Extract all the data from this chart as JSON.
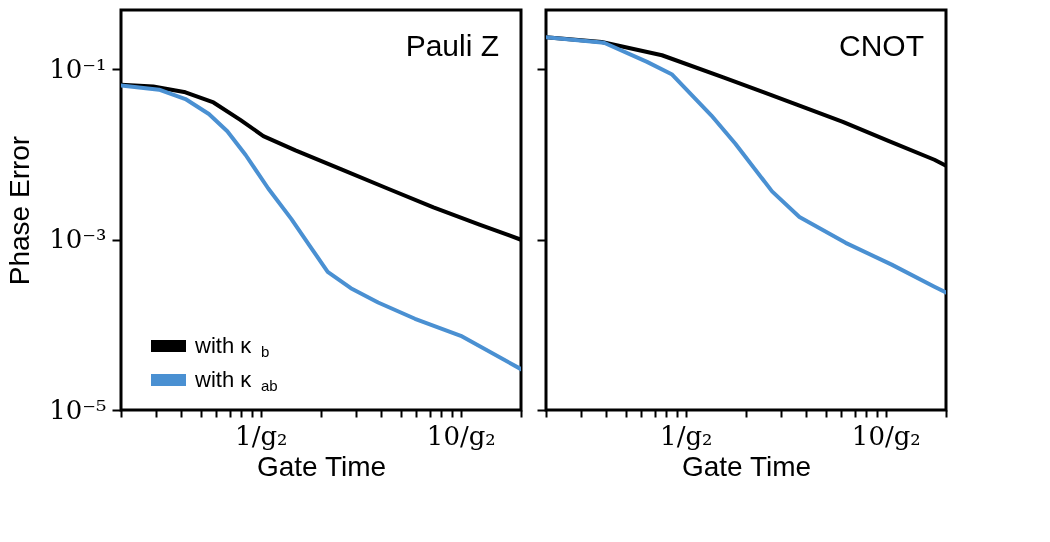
{
  "chart_data": [
    {
      "type": "line",
      "annotations": [
        "Pauli Z"
      ],
      "xlabel": "Gate Time",
      "ylabel": "Phase Error",
      "log": "xy",
      "legend": "bottom left",
      "grid": false,
      "xlim": [
        0.2,
        20
      ],
      "ylim": [
        1e-05,
        0.5
      ],
      "xticks": [
        {
          "value": 0.2,
          "label": null
        },
        {
          "value": 0.3,
          "label": null
        },
        {
          "value": 0.4,
          "label": null
        },
        {
          "value": 0.5,
          "label": null
        },
        {
          "value": 0.6,
          "label": null
        },
        {
          "value": 0.7,
          "label": null
        },
        {
          "value": 0.8,
          "label": null
        },
        {
          "value": 0.9,
          "label": null
        },
        {
          "value": 1,
          "label": "1/g₂"
        },
        {
          "value": 2,
          "label": null
        },
        {
          "value": 3,
          "label": null
        },
        {
          "value": 4,
          "label": null
        },
        {
          "value": 5,
          "label": null
        },
        {
          "value": 6,
          "label": null
        },
        {
          "value": 7,
          "label": null
        },
        {
          "value": 8,
          "label": null
        },
        {
          "value": 9,
          "label": null
        },
        {
          "value": 10,
          "label": "10/g₂"
        },
        {
          "value": 20,
          "label": null
        }
      ],
      "yticks": [
        {
          "value": 0.1,
          "label": "10⁻¹"
        },
        {
          "value": 0.001,
          "label": "10⁻³"
        },
        {
          "value": 1e-05,
          "label": "10⁻⁵"
        }
      ],
      "series": [
        {
          "name": "with κ$_{b}$",
          "color": "#000000",
          "x": [
            0.2,
            0.29,
            0.42,
            0.58,
            0.79,
            1.03,
            1.49,
            2.53,
            4.3,
            7.3,
            12.4,
            20
          ],
          "values": [
            0.066,
            0.063,
            0.054,
            0.041,
            0.0256,
            0.0165,
            0.0112,
            0.0067,
            0.004,
            0.0024,
            0.00151,
            0.001
          ]
        },
        {
          "name": "with κ$_{ab}$",
          "color": "#4a90d2",
          "x": [
            0.2,
            0.31,
            0.42,
            0.55,
            0.68,
            0.84,
            1.09,
            1.42,
            1.75,
            2.16,
            2.82,
            3.86,
            5.9,
            10,
            20
          ],
          "values": [
            0.065,
            0.058,
            0.045,
            0.03,
            0.0188,
            0.0099,
            0.004,
            0.00176,
            0.00086,
            0.00042,
            0.00027,
            0.000183,
            0.000118,
            7.45e-05,
            3.02e-05
          ]
        }
      ]
    },
    {
      "type": "line",
      "annotations": [
        "CNOT"
      ],
      "xlabel": "Gate Time",
      "log": "xy",
      "grid": false,
      "tick_labels": "x",
      "xlim": [
        0.2,
        20
      ],
      "ylim": [
        1e-05,
        0.5
      ],
      "xticks": [
        {
          "value": 0.2,
          "label": null
        },
        {
          "value": 0.3,
          "label": null
        },
        {
          "value": 0.4,
          "label": null
        },
        {
          "value": 0.5,
          "label": null
        },
        {
          "value": 0.6,
          "label": null
        },
        {
          "value": 0.7,
          "label": null
        },
        {
          "value": 0.8,
          "label": null
        },
        {
          "value": 0.9,
          "label": null
        },
        {
          "value": 1,
          "label": "1/g₂"
        },
        {
          "value": 2,
          "label": null
        },
        {
          "value": 3,
          "label": null
        },
        {
          "value": 4,
          "label": null
        },
        {
          "value": 5,
          "label": null
        },
        {
          "value": 6,
          "label": null
        },
        {
          "value": 7,
          "label": null
        },
        {
          "value": 8,
          "label": null
        },
        {
          "value": 9,
          "label": null
        },
        {
          "value": 10,
          "label": "10/g₂"
        },
        {
          "value": 20,
          "label": null
        }
      ],
      "yticks": [
        {
          "value": 0.1,
          "label": null
        },
        {
          "value": 0.001,
          "label": null
        },
        {
          "value": 1e-05,
          "label": null
        }
      ],
      "series": [
        {
          "color": "#000000",
          "x": [
            0.2,
            0.38,
            0.76,
            1.54,
            3.59,
            6.1,
            10.3,
            17.5,
            20
          ],
          "values": [
            0.24,
            0.21,
            0.147,
            0.081,
            0.0386,
            0.0243,
            0.0145,
            0.0087,
            0.0074
          ]
        },
        {
          "color": "#4a90d2",
          "x": [
            0.2,
            0.39,
            0.64,
            0.85,
            1.34,
            1.77,
            2.7,
            3.7,
            6.3,
            10.7,
            17.5,
            20
          ],
          "values": [
            0.24,
            0.206,
            0.123,
            0.088,
            0.029,
            0.0134,
            0.0037,
            0.00185,
            0.00092,
            0.00051,
            0.00028,
            0.00024
          ]
        }
      ]
    }
  ]
}
